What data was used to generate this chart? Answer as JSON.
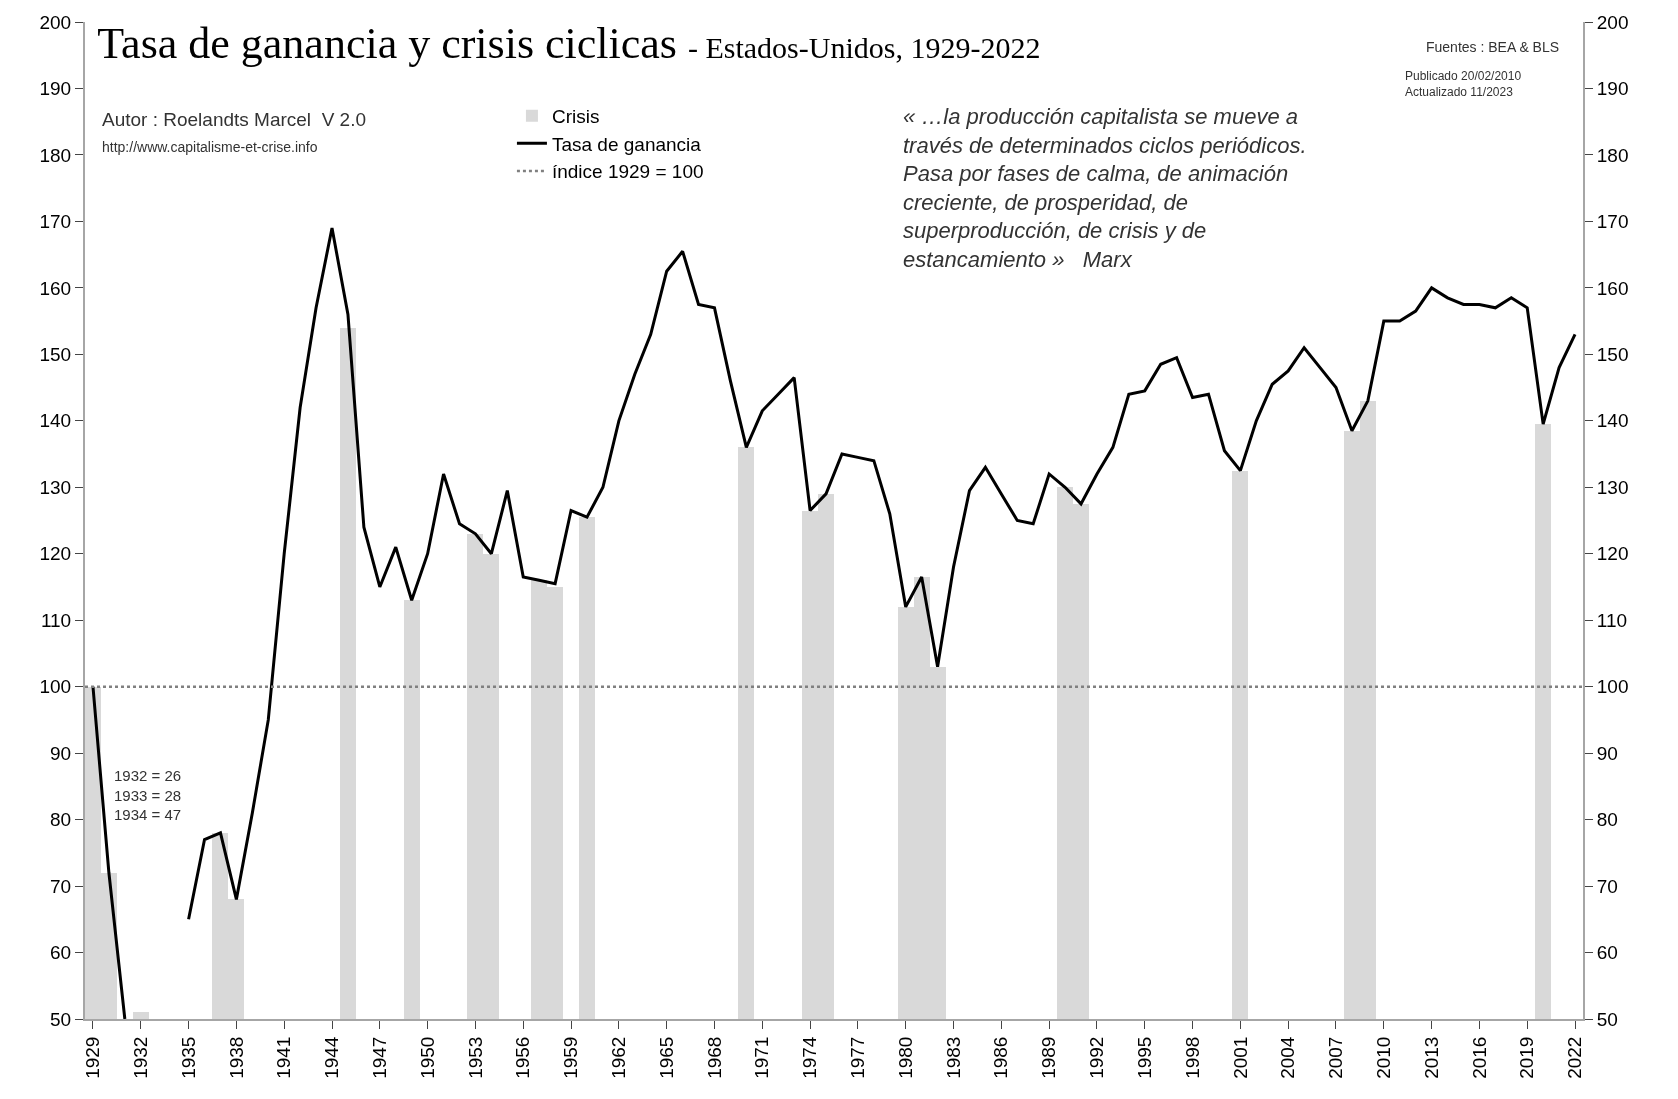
{
  "chart_data": {
    "type": "line",
    "title": "Tasa de ganancia y crisis ciclicas",
    "subtitle": "- Estados-Unidos, 1929-2022",
    "x": [
      1929,
      1930,
      1931,
      1932,
      1933,
      1934,
      1935,
      1936,
      1937,
      1938,
      1939,
      1940,
      1941,
      1942,
      1943,
      1944,
      1945,
      1946,
      1947,
      1948,
      1949,
      1950,
      1951,
      1952,
      1953,
      1954,
      1955,
      1956,
      1957,
      1958,
      1959,
      1960,
      1961,
      1962,
      1963,
      1964,
      1965,
      1966,
      1967,
      1968,
      1969,
      1970,
      1971,
      1972,
      1973,
      1974,
      1975,
      1976,
      1977,
      1978,
      1979,
      1980,
      1981,
      1982,
      1983,
      1984,
      1985,
      1986,
      1987,
      1988,
      1989,
      1990,
      1991,
      1992,
      1993,
      1994,
      1995,
      1996,
      1997,
      1998,
      1999,
      2000,
      2001,
      2002,
      2003,
      2004,
      2005,
      2006,
      2007,
      2008,
      2009,
      2010,
      2011,
      2012,
      2013,
      2014,
      2015,
      2016,
      2017,
      2018,
      2019,
      2020,
      2021,
      2022
    ],
    "series": [
      {
        "name": "Crisis",
        "type": "bar",
        "color": "#d9d9d9",
        "values": [
          100,
          72,
          null,
          51,
          null,
          null,
          null,
          null,
          78,
          68,
          null,
          null,
          null,
          null,
          null,
          null,
          154,
          null,
          null,
          null,
          113,
          null,
          null,
          null,
          123,
          120,
          null,
          null,
          116,
          115,
          null,
          125.5,
          null,
          null,
          null,
          null,
          null,
          null,
          null,
          null,
          null,
          136,
          null,
          null,
          null,
          126.5,
          129,
          null,
          null,
          null,
          null,
          112,
          116.5,
          103,
          null,
          null,
          null,
          null,
          null,
          null,
          null,
          130,
          127.5,
          null,
          null,
          null,
          null,
          null,
          null,
          null,
          null,
          null,
          132.5,
          null,
          null,
          null,
          null,
          null,
          null,
          138.5,
          143,
          null,
          null,
          null,
          null,
          null,
          null,
          null,
          null,
          null,
          null,
          139.5,
          null,
          null
        ]
      },
      {
        "name": "Tasa de ganancia",
        "color": "#000000",
        "values": [
          100,
          72,
          50,
          null,
          null,
          null,
          65,
          77,
          78,
          68,
          81,
          95,
          120,
          142,
          157,
          169,
          156,
          124,
          115,
          121,
          113,
          120,
          132,
          124.5,
          123,
          120,
          129.5,
          116.5,
          116,
          115.5,
          126.5,
          125.5,
          130,
          140,
          147,
          153,
          162.5,
          165.5,
          157.5,
          157,
          146,
          136,
          141.5,
          144,
          146.5,
          126.5,
          129,
          135,
          134.5,
          134,
          126,
          112,
          116.5,
          103,
          118,
          129.5,
          133,
          129,
          125,
          124.5,
          132,
          130,
          127.5,
          132,
          136,
          144,
          144.5,
          148.5,
          149.5,
          143.5,
          144,
          135.5,
          132.5,
          140,
          145.5,
          147.5,
          151,
          148,
          145,
          138.5,
          143,
          155,
          155,
          156.5,
          160,
          158.5,
          157.5,
          157.5,
          157,
          158.5,
          157,
          139.5,
          148,
          153
        ]
      }
    ],
    "ref_lines": [
      {
        "axis": "y",
        "value": 100,
        "label": "índice 1929 = 100",
        "color": "#808080",
        "line_style": "dotted"
      }
    ],
    "xlim": [
      1928.5,
      2022.5
    ],
    "xticks": [
      1929,
      1932,
      1935,
      1938,
      1941,
      1944,
      1947,
      1950,
      1953,
      1956,
      1959,
      1962,
      1965,
      1968,
      1971,
      1974,
      1977,
      1980,
      1983,
      1986,
      1989,
      1992,
      1995,
      1998,
      2001,
      2004,
      2007,
      2010,
      2013,
      2016,
      2019,
      2022
    ],
    "ylim": [
      50,
      200
    ],
    "yticks": [
      50,
      60,
      70,
      80,
      90,
      100,
      110,
      120,
      130,
      140,
      150,
      160,
      170,
      180,
      190,
      200
    ],
    "y2lim": [
      50,
      200
    ],
    "y2ticks": [
      50,
      60,
      70,
      80,
      90,
      100,
      110,
      120,
      130,
      140,
      150,
      160,
      170,
      180,
      190,
      200
    ],
    "legend": "top left",
    "line_style": "solid",
    "marker": "none",
    "annotations": [
      "Autor : Roelandts Marcel  V 2.0",
      "http://www.capitalisme-et-crise.info",
      "1932 = 26\n1933 = 28\n1934 = 47",
      "« …la producción capitalista se mueve a\ntravés de determinados ciclos periódicos.\nPasa por fases de calma, de animación\ncreciente, de prosperidad, de\nsuperproducción, de crisis y de\nestancamiento »   Marx",
      "Fuentes : BEA & BLS",
      "Publicado 20/02/2010\nActualizado 11/2023"
    ]
  }
}
